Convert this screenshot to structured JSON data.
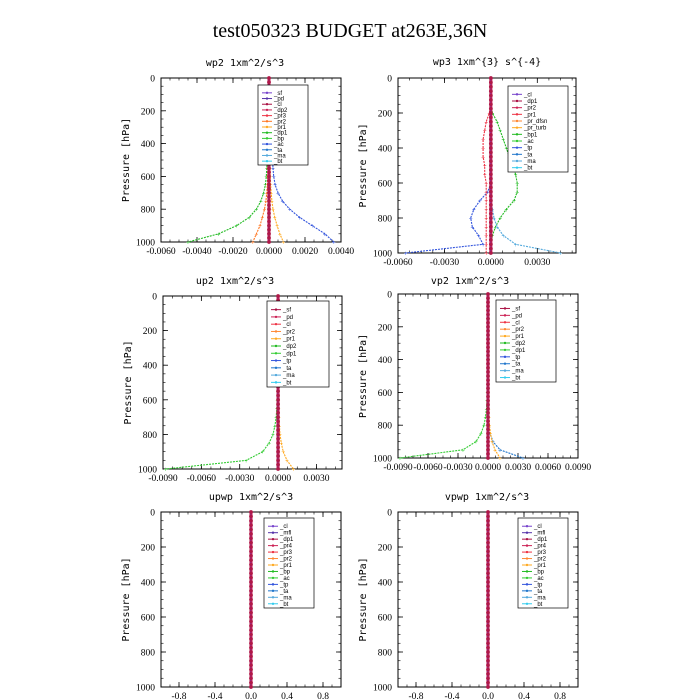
{
  "figure_title": "test050323  BUDGET at263E,36N",
  "chart_data": [
    {
      "type": "line",
      "title": "wp2  1xm^2/s^3",
      "ylabel": "Pressure [hPa]",
      "ylim": [
        1000,
        0
      ],
      "xlim": [
        -0.006,
        0.004
      ],
      "xticks": [
        -0.006,
        -0.004,
        -0.002,
        0.0,
        0.002,
        0.004
      ],
      "xticklabels": [
        "-0.0060",
        "-0.0040",
        "-0.0020",
        "0.0000",
        "0.0020",
        "0.0040"
      ],
      "yticks": [
        0,
        200,
        400,
        600,
        800,
        1000
      ],
      "yticklabels": [
        "0",
        "200",
        "400",
        "600",
        "800",
        "1000"
      ],
      "legend": [
        "_sf",
        "_pd",
        "_cl",
        "_dp2",
        "_pr3",
        "_pr2",
        "_pr1",
        "_dp1",
        "_bp",
        "_ac",
        "_ta",
        "_ma",
        "_bt"
      ],
      "series_colors": [
        "#7744cc",
        "#5533aa",
        "#aa1144",
        "#cc2255",
        "#ee3344",
        "#ff7722",
        "#ffaa22",
        "#22bb22",
        "#33cc33",
        "#3355dd",
        "#2277cc",
        "#55aadd",
        "#33ccee"
      ],
      "pressure": [
        0,
        50,
        100,
        150,
        200,
        250,
        300,
        350,
        400,
        450,
        500,
        550,
        600,
        650,
        700,
        750,
        800,
        850,
        900,
        950,
        1000
      ],
      "series": [
        {
          "name": "_ac",
          "values": [
            0.0,
            2e-05,
            4e-05,
            6e-05,
            8e-05,
            0.0001,
            0.00012,
            0.00014,
            0.00016,
            0.00018,
            0.0002,
            0.00022,
            0.00026,
            0.00034,
            0.0005,
            0.00075,
            0.00115,
            0.0017,
            0.0024,
            0.0031,
            0.0036
          ]
        },
        {
          "name": "_dp1",
          "values": [
            0.0,
            -1e-05,
            -2e-05,
            -2e-05,
            -3e-05,
            -4e-05,
            -5e-05,
            -6e-05,
            -7e-05,
            -8e-05,
            -0.0001,
            -0.00012,
            -0.00015,
            -0.0002,
            -0.0003,
            -0.00045,
            -0.0007,
            -0.0011,
            -0.0018,
            -0.0028,
            -0.0045
          ]
        },
        {
          "name": "_pr1",
          "values": [
            0.0,
            0.0,
            1e-05,
            1e-05,
            2e-05,
            2e-05,
            3e-05,
            3e-05,
            4e-05,
            4e-05,
            5e-05,
            6e-05,
            7e-05,
            9e-05,
            0.00012,
            0.00016,
            0.00022,
            0.00032,
            0.00045,
            0.0006,
            0.0008
          ]
        },
        {
          "name": "_pr2",
          "values": [
            0.0,
            0.0,
            -1e-05,
            -1e-05,
            -2e-05,
            -2e-05,
            -3e-05,
            -3e-05,
            -4e-05,
            -4e-05,
            -5e-05,
            -6e-05,
            -7e-05,
            -9e-05,
            -0.00012,
            -0.00017,
            -0.00025,
            -0.00037,
            -0.0005,
            -0.0007,
            -0.0009
          ]
        }
      ]
    },
    {
      "type": "line",
      "title": "wp3  1xm^{3} s^{-4}",
      "ylabel": "Pressure [hPa]",
      "ylim": [
        1000,
        0
      ],
      "xlim": [
        -0.006,
        0.0055
      ],
      "xticks": [
        -0.006,
        -0.003,
        0.0,
        0.003
      ],
      "xticklabels": [
        "-0.0060",
        "-0.0030",
        "0.0000",
        "0.0030"
      ],
      "yticks": [
        0,
        200,
        400,
        600,
        800,
        1000
      ],
      "yticklabels": [
        "0",
        "200",
        "400",
        "600",
        "800",
        "1000"
      ],
      "legend": [
        "_cl",
        "_dp1",
        "_pr2",
        "_pr1",
        "_pr_dfsn",
        "_pr_turb",
        "_bp1",
        "_ac",
        "_tp",
        "_ta",
        "_ma",
        "_bt"
      ],
      "series_colors": [
        "#7744cc",
        "#aa1144",
        "#cc2255",
        "#ee3344",
        "#ff8833",
        "#ffaa22",
        "#22bb22",
        "#33cc33",
        "#3355dd",
        "#2277cc",
        "#55aadd",
        "#33ccee"
      ],
      "pressure": [
        0,
        50,
        100,
        150,
        200,
        250,
        300,
        350,
        400,
        450,
        500,
        550,
        600,
        650,
        700,
        750,
        800,
        850,
        900,
        950,
        1000
      ],
      "series": [
        {
          "name": "_bp1",
          "values": [
            0.0,
            0.0,
            0.0,
            0.0,
            0.0001,
            0.0004,
            0.0006,
            0.0008,
            0.001,
            0.0012,
            0.0014,
            0.0016,
            0.0017,
            0.0017,
            0.0015,
            0.001,
            0.0006,
            0.0003,
            0.0001,
            0.0,
            0.0
          ]
        },
        {
          "name": "_tp",
          "values": [
            0.0,
            0.0,
            0.0,
            0.0,
            0.0,
            0.0,
            0.0,
            0.0,
            0.0,
            0.0,
            0.0,
            0.0,
            0.0,
            -0.0002,
            -0.0007,
            -0.0011,
            -0.0013,
            -0.0012,
            -0.0008,
            -0.0005,
            -0.0055
          ]
        },
        {
          "name": "_ma",
          "values": [
            0.0,
            0.0,
            0.0,
            0.0,
            0.0,
            0.0,
            0.0,
            0.0,
            0.0,
            0.0,
            0.0,
            0.0,
            0.0,
            0.0,
            0.0,
            0.0001,
            0.0002,
            0.0004,
            0.0008,
            0.0016,
            0.0045
          ]
        },
        {
          "name": "_pr1",
          "values": [
            0.0,
            0.0,
            0.0,
            0.0,
            -0.0001,
            -0.0003,
            -0.0004,
            -0.0005,
            -0.0005,
            -0.0005,
            -0.0004,
            -0.0004,
            -0.0003,
            -0.0003,
            -0.0003,
            -0.0003,
            -0.0003,
            -0.0003,
            -0.0003,
            -0.0003,
            -0.0003
          ]
        }
      ]
    },
    {
      "type": "line",
      "title": "up2  1xm^2/s^3",
      "ylabel": "Pressure [hPa]",
      "ylim": [
        1000,
        0
      ],
      "xlim": [
        -0.009,
        0.005
      ],
      "xticks": [
        -0.009,
        -0.006,
        -0.003,
        0.0,
        0.003
      ],
      "xticklabels": [
        "-0.0090",
        "-0.0060",
        "-0.0030",
        "0.0000",
        "0.0030"
      ],
      "yticks": [
        0,
        200,
        400,
        600,
        800,
        1000
      ],
      "yticklabels": [
        "0",
        "200",
        "400",
        "600",
        "800",
        "1000"
      ],
      "legend": [
        "_sf",
        "_pd",
        "_cl",
        "_pr2",
        "_pr1",
        "_dp2",
        "_dp1",
        "_tp",
        "_ta",
        "_ma",
        "_bt"
      ],
      "series_colors": [
        "#aa1144",
        "#cc2255",
        "#ee3344",
        "#ff8833",
        "#ffaa22",
        "#22bb22",
        "#33cc33",
        "#3355dd",
        "#2277cc",
        "#55aadd",
        "#33ccee"
      ],
      "pressure": [
        0,
        50,
        100,
        150,
        200,
        250,
        300,
        350,
        400,
        450,
        500,
        550,
        600,
        650,
        700,
        750,
        800,
        850,
        900,
        950,
        1000
      ],
      "series": [
        {
          "name": "_dp1",
          "values": [
            0.0,
            0.0,
            0.0,
            0.0,
            0.0,
            0.0,
            0.0,
            0.0,
            0.0,
            0.0,
            -2e-05,
            -4e-05,
            -6e-05,
            -0.0001,
            -0.00015,
            -0.00025,
            -0.0004,
            -0.0007,
            -0.0012,
            -0.0025,
            -0.0088
          ]
        },
        {
          "name": "_pr1",
          "values": [
            0.0,
            0.0,
            0.0,
            0.0,
            0.0,
            0.0,
            0.0,
            0.0,
            0.0,
            0.0,
            1e-05,
            2e-05,
            3e-05,
            4e-05,
            6e-05,
            0.0001,
            0.00015,
            0.00025,
            0.0004,
            0.0007,
            0.0012
          ]
        }
      ]
    },
    {
      "type": "line",
      "title": "vp2  1xm^2/s^3",
      "ylabel": "Pressure [hPa]",
      "ylim": [
        1000,
        0
      ],
      "xlim": [
        -0.009,
        0.009
      ],
      "xticks": [
        -0.009,
        -0.006,
        -0.003,
        0.0,
        0.003,
        0.006,
        0.009
      ],
      "xticklabels": [
        "-0.0090",
        "-0.0060",
        "-0.0030",
        "0.0000",
        "0.0030",
        "0.0060",
        "0.0090"
      ],
      "yticks": [
        0,
        200,
        400,
        600,
        800,
        1000
      ],
      "yticklabels": [
        "0",
        "200",
        "400",
        "600",
        "800",
        "1000"
      ],
      "legend": [
        "_sf",
        "_pd",
        "_cl",
        "_pr2",
        "_pr1",
        "_dp2",
        "_dp1",
        "_tp",
        "_ta",
        "_ma",
        "_bt"
      ],
      "series_colors": [
        "#aa1144",
        "#cc2255",
        "#ee3344",
        "#ff8833",
        "#ffaa22",
        "#22bb22",
        "#33cc33",
        "#3355dd",
        "#2277cc",
        "#55aadd",
        "#33ccee"
      ],
      "pressure": [
        0,
        50,
        100,
        150,
        200,
        250,
        300,
        350,
        400,
        450,
        500,
        550,
        600,
        650,
        700,
        750,
        800,
        850,
        900,
        950,
        1000
      ],
      "series": [
        {
          "name": "_dp1",
          "values": [
            0.0,
            0.0,
            0.0,
            0.0,
            0.0,
            0.0,
            0.0,
            0.0,
            0.0,
            0.0,
            -2e-05,
            -4e-05,
            -6e-05,
            -0.0001,
            -0.00015,
            -0.00025,
            -0.0004,
            -0.0007,
            -0.0012,
            -0.0025,
            -0.0088
          ]
        },
        {
          "name": "_ta",
          "values": [
            0.0,
            0.0,
            0.0,
            0.0,
            0.0,
            0.0,
            0.0,
            0.0,
            0.0,
            0.0,
            0.0,
            0.0,
            0.0,
            0.0,
            0.0,
            0.0,
            0.0001,
            0.0002,
            0.0005,
            0.0012,
            0.0035
          ]
        },
        {
          "name": "_pr1",
          "values": [
            0.0,
            0.0,
            0.0,
            0.0,
            0.0,
            0.0,
            0.0,
            0.0,
            0.0,
            0.0,
            1e-05,
            2e-05,
            3e-05,
            4e-05,
            6e-05,
            0.0001,
            0.00015,
            0.00025,
            0.0004,
            0.0007,
            0.0012
          ]
        }
      ]
    },
    {
      "type": "line",
      "title": "upwp  1xm^2/s^3",
      "ylabel": "Pressure [hPa]",
      "ylim": [
        1000,
        0
      ],
      "xlim": [
        -1.0,
        1.0
      ],
      "xticks": [
        -0.8,
        -0.4,
        0.0,
        0.4,
        0.8
      ],
      "xticklabels": [
        "-0.8",
        "-0.4",
        "0.0",
        "0.4",
        "0.8"
      ],
      "yticks": [
        0,
        200,
        400,
        600,
        800,
        1000
      ],
      "yticklabels": [
        "0",
        "200",
        "400",
        "600",
        "800",
        "1000"
      ],
      "legend": [
        "_cl",
        "_mfl",
        "_dp1",
        "_pr4",
        "_pr3",
        "_pr2",
        "_pr1",
        "_bp",
        "_ac",
        "_tp",
        "_ta",
        "_ma",
        "_bt"
      ],
      "series_colors": [
        "#7744cc",
        "#5533aa",
        "#aa1144",
        "#cc2255",
        "#ee3344",
        "#ff8833",
        "#ffaa22",
        "#22bb22",
        "#33cc33",
        "#3355dd",
        "#2277cc",
        "#55aadd",
        "#33ccee"
      ],
      "pressure": [
        0,
        50,
        100,
        150,
        200,
        250,
        300,
        350,
        400,
        450,
        500,
        550,
        600,
        650,
        700,
        750,
        800,
        850,
        900,
        950,
        1000
      ],
      "series": [
        {
          "name": "_cl",
          "values": [
            0,
            0,
            0,
            0,
            0,
            0,
            0,
            0,
            0,
            0,
            0,
            0,
            0,
            0,
            0,
            0,
            0,
            0,
            0,
            0,
            0
          ]
        }
      ]
    },
    {
      "type": "line",
      "title": "vpwp  1xm^2/s^3",
      "ylabel": "Pressure [hPa]",
      "ylim": [
        1000,
        0
      ],
      "xlim": [
        -1.0,
        1.0
      ],
      "xticks": [
        -0.8,
        -0.4,
        0.0,
        0.4,
        0.8
      ],
      "xticklabels": [
        "-0.8",
        "-0.4",
        "0.0",
        "0.4",
        "0.8"
      ],
      "yticks": [
        0,
        200,
        400,
        600,
        800,
        1000
      ],
      "yticklabels": [
        "0",
        "200",
        "400",
        "600",
        "800",
        "1000"
      ],
      "legend": [
        "_cl",
        "_mfl",
        "_dp1",
        "_pr4",
        "_pr3",
        "_pr2",
        "_pr1",
        "_bp",
        "_ac",
        "_tp",
        "_ta",
        "_ma",
        "_bt"
      ],
      "series_colors": [
        "#7744cc",
        "#5533aa",
        "#aa1144",
        "#cc2255",
        "#ee3344",
        "#ff8833",
        "#ffaa22",
        "#22bb22",
        "#33cc33",
        "#3355dd",
        "#2277cc",
        "#55aadd",
        "#33ccee"
      ],
      "pressure": [
        0,
        50,
        100,
        150,
        200,
        250,
        300,
        350,
        400,
        450,
        500,
        550,
        600,
        650,
        700,
        750,
        800,
        850,
        900,
        950,
        1000
      ],
      "series": [
        {
          "name": "_cl",
          "values": [
            0,
            0,
            0,
            0,
            0,
            0,
            0,
            0,
            0,
            0,
            0,
            0,
            0,
            0,
            0,
            0,
            0,
            0,
            0,
            0,
            0
          ]
        }
      ]
    }
  ]
}
